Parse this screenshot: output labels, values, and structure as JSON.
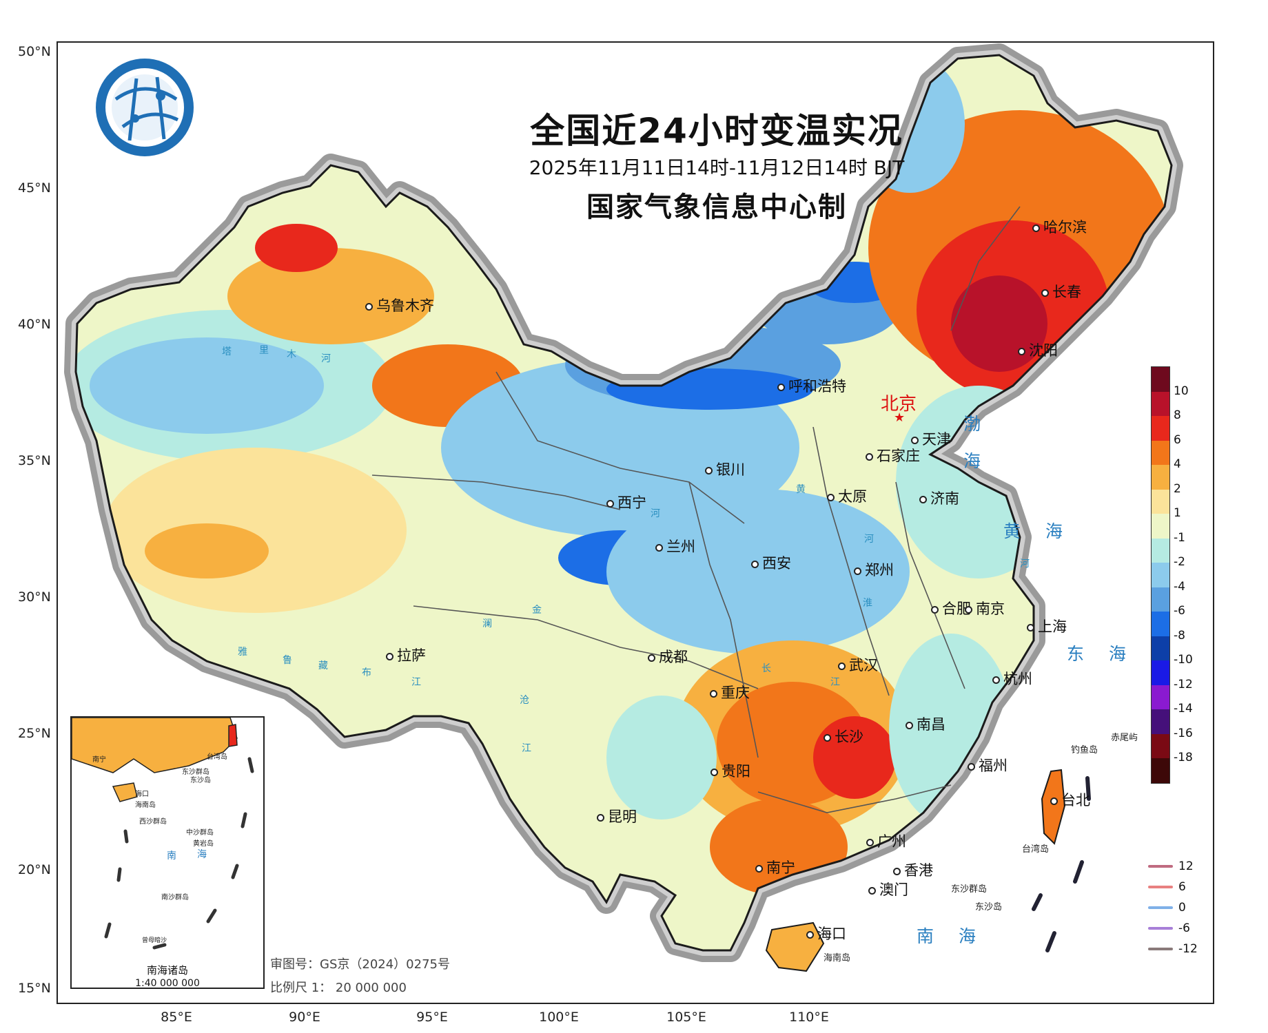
{
  "title": "全国近24小时变温实况",
  "subtitle": "2025年11月11日14时-11月12日14时 BJT",
  "producer": "国家气象信息中心制",
  "lat_ticks": [
    "50°N",
    "45°N",
    "40°N",
    "35°N",
    "30°N",
    "25°N",
    "20°N",
    "15°N"
  ],
  "lon_ticks": [
    "85°E",
    "90°E",
    "95°E",
    "100°E",
    "105°E",
    "110°E"
  ],
  "capital": "北京",
  "cities": [
    "哈尔滨",
    "长春",
    "沈阳",
    "乌鲁木齐",
    "呼和浩特",
    "天津",
    "石家庄",
    "银川",
    "太原",
    "济南",
    "西宁",
    "兰州",
    "西安",
    "郑州",
    "合肥",
    "南京",
    "上海",
    "拉萨",
    "成都",
    "武汉",
    "杭州",
    "重庆",
    "长沙",
    "南昌",
    "贵阳",
    "福州",
    "台北",
    "昆明",
    "广州",
    "南宁",
    "香港",
    "澳门",
    "海口"
  ],
  "seas": {
    "bohai_1": "渤",
    "bohai_2": "海",
    "yellow": "黄 海",
    "east": "东 海",
    "south": "南 海"
  },
  "rivers": [
    "塔",
    "里",
    "木",
    "河",
    "黄",
    "河",
    "河",
    "淮",
    "长",
    "金",
    "澜",
    "沧",
    "江",
    "雅",
    "鲁",
    "藏",
    "布",
    "江",
    "江",
    "河"
  ],
  "islands": {
    "diaoyu": "钓鱼岛",
    "chiwei": "赤尾屿",
    "taiwan": "台湾岛",
    "dongsha_qundao": "东沙群岛",
    "dongsha_dao": "东沙岛",
    "hainan": "海南岛"
  },
  "legend": {
    "colors": [
      "#6e0a1e",
      "#b8122a",
      "#e8281c",
      "#f2761a",
      "#f7b040",
      "#fbe39a",
      "#eef6c8",
      "#b5ebe2",
      "#8ccbec",
      "#5aa0e0",
      "#1c6ee6",
      "#0d3fa8",
      "#1a1ae6",
      "#8a1ad0",
      "#45107a",
      "#7a0a14",
      "#3d0808"
    ],
    "labels": [
      "10",
      "8",
      "6",
      "4",
      "2",
      "1",
      "-1",
      "-2",
      "-4",
      "-6",
      "-8",
      "-10",
      "-12",
      "-14",
      "-16",
      "-18"
    ]
  },
  "contour_legend": {
    "labels": [
      "12",
      "6",
      "0",
      "-6",
      "-12"
    ],
    "colors": [
      "#c06b80",
      "#e88080",
      "#7fb0e8",
      "#a87fd8",
      "#8a7a7a"
    ]
  },
  "inset": {
    "title": "南海诸岛",
    "scale": "1:40 000 000",
    "labels": [
      "南宁",
      "台湾岛",
      "东沙群岛",
      "海口",
      "海南岛",
      "东沙岛",
      "西沙群岛",
      "中沙群岛",
      "黄岩岛",
      "南",
      "海",
      "南沙群岛",
      "曾母暗沙"
    ]
  },
  "review_no": "审图号：GS京（2024）0275号",
  "scale": "比例尺 1： 20 000 000"
}
